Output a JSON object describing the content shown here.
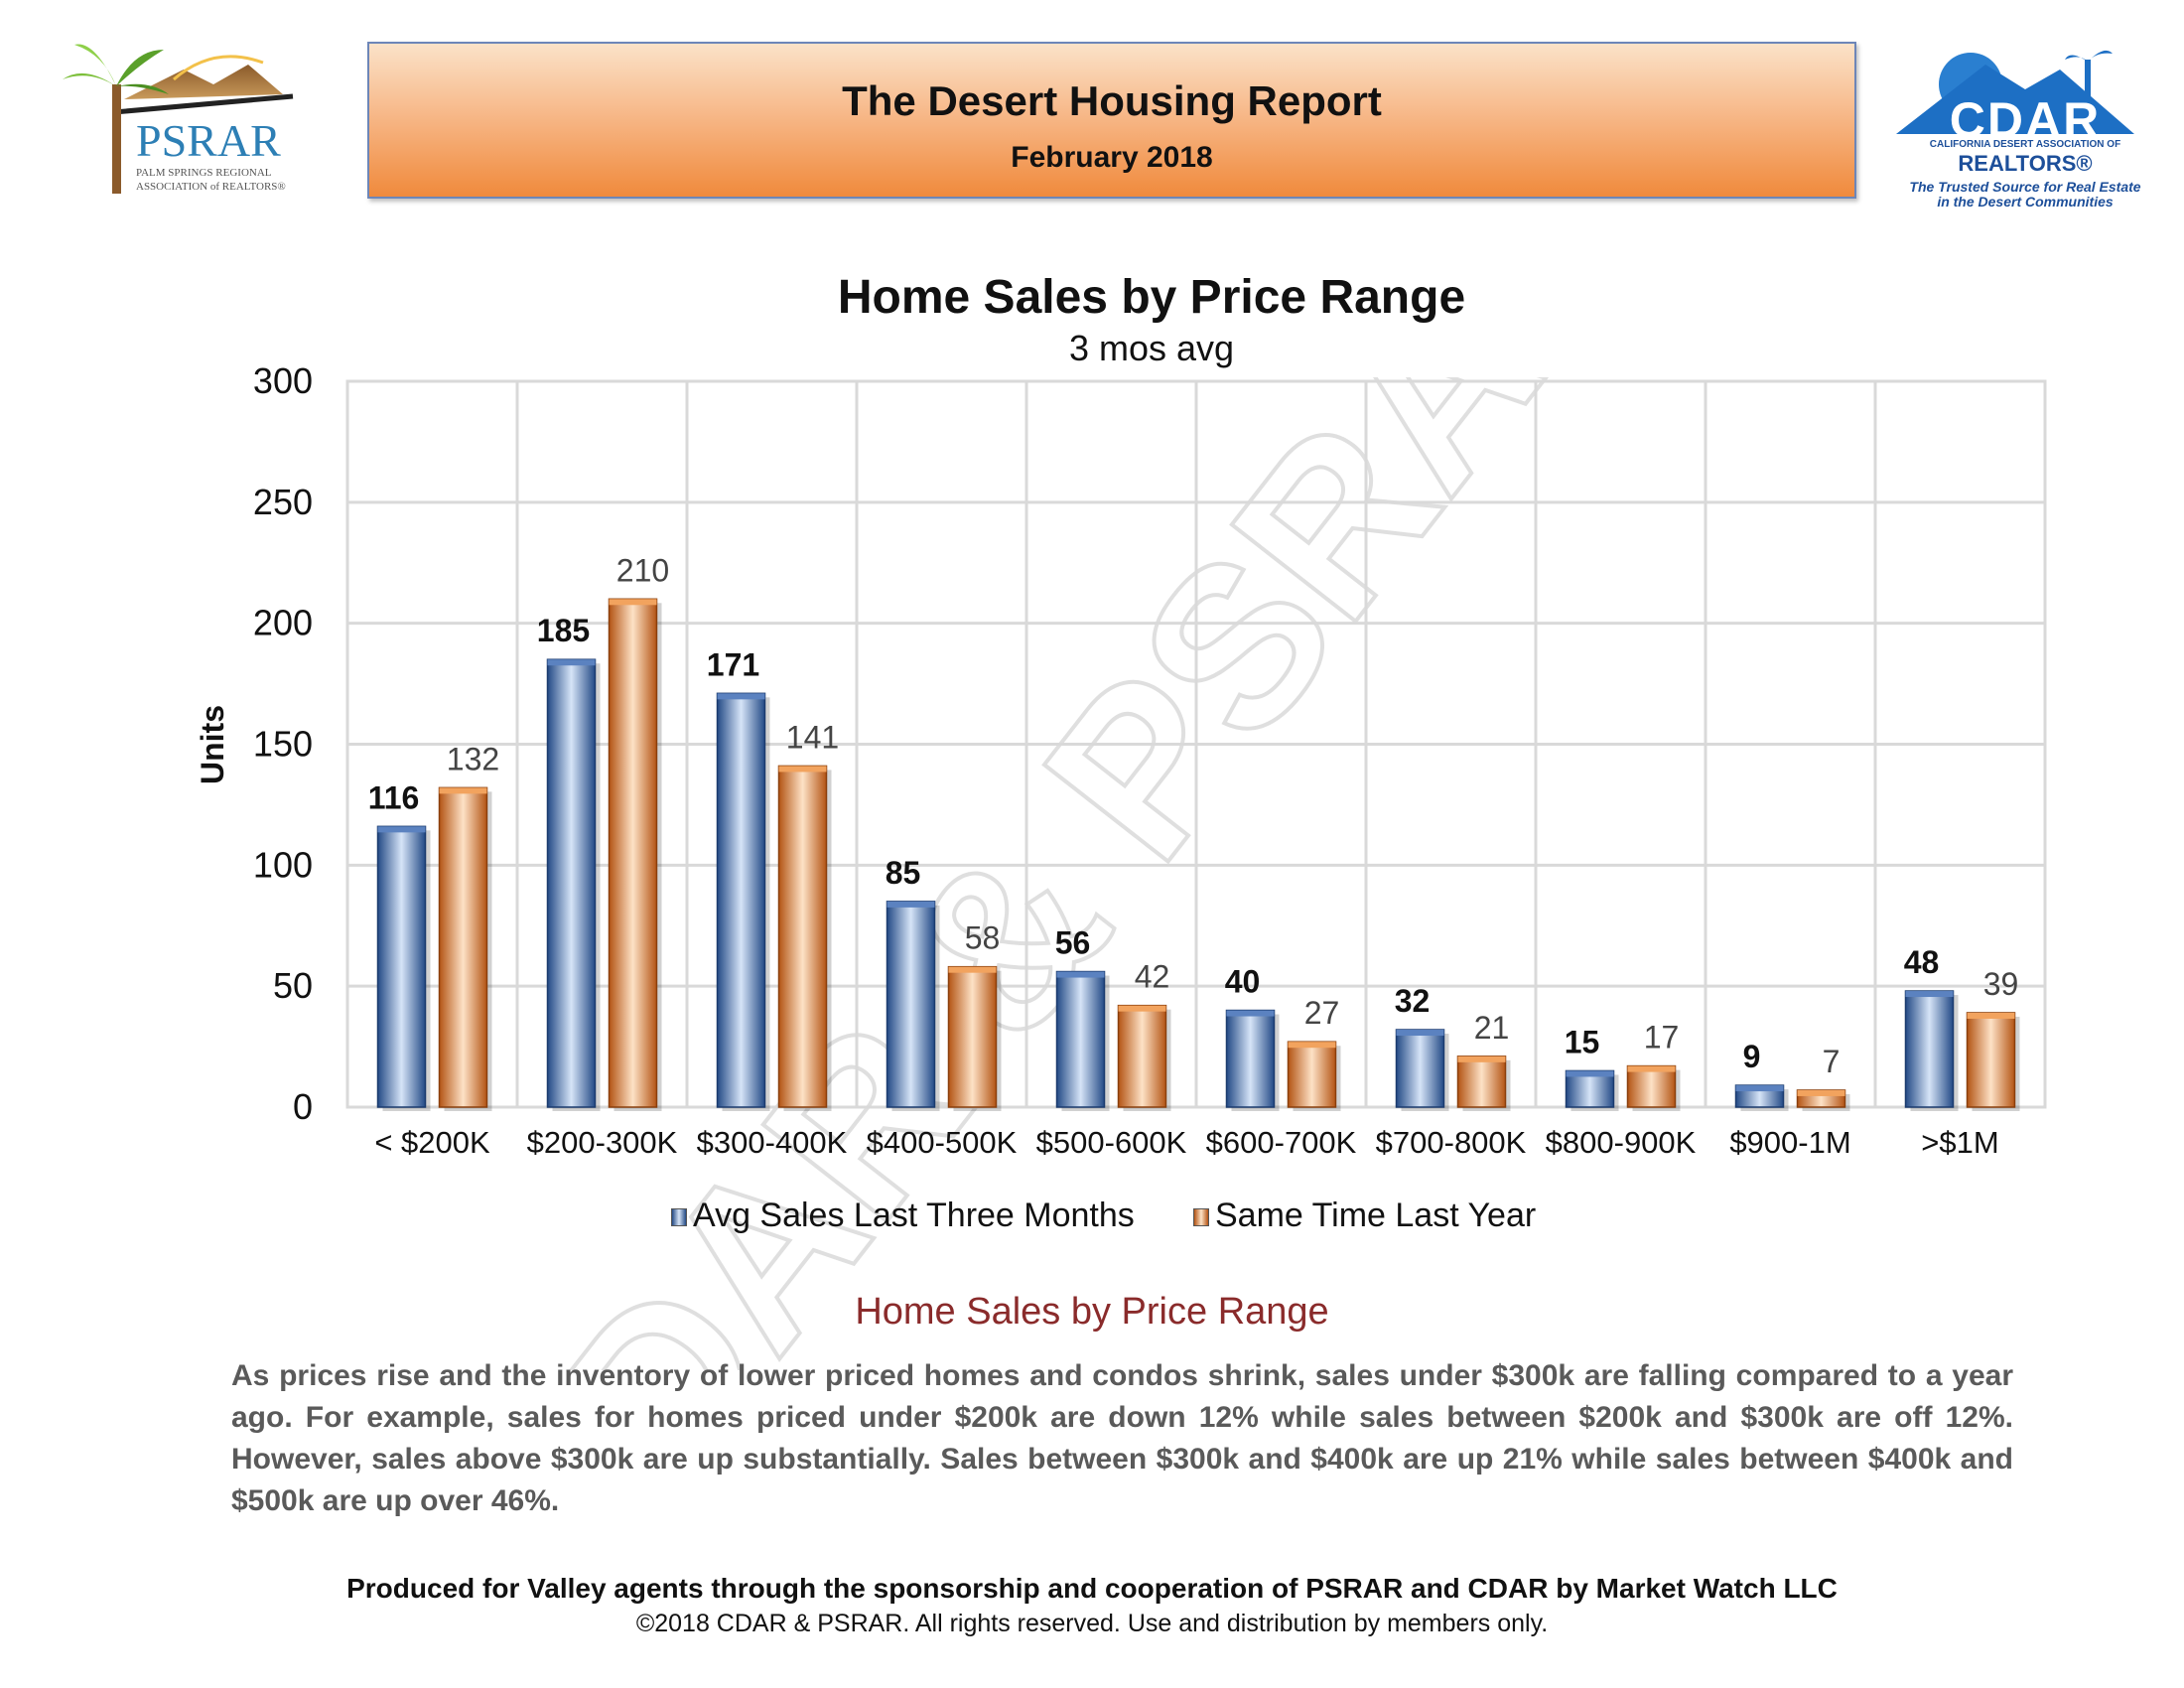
{
  "header": {
    "title": "The Desert Housing Report",
    "date": "February 2018",
    "left_logo": {
      "name": "PSRAR",
      "line1": "PALM SPRINGS REGIONAL",
      "line2": "ASSOCIATION of REALTORS®"
    },
    "right_logo": {
      "name": "CDAR",
      "line1": "CALIFORNIA DESERT ASSOCIATION OF",
      "line2": "REALTORS®",
      "tagline1": "The Trusted Source for Real Estate",
      "tagline2": "in the Desert Communities"
    }
  },
  "watermark": "CDAR & PSRAR",
  "chart_data": {
    "type": "bar",
    "title": "Home Sales by Price Range",
    "subtitle": "3 mos avg",
    "ylabel": "Units",
    "xlabel": "",
    "ylim": [
      0,
      300
    ],
    "yticks": [
      0,
      50,
      100,
      150,
      200,
      250,
      300
    ],
    "categories": [
      "< $200K",
      "$200-300K",
      "$300-400K",
      "$400-500K",
      "$500-600K",
      "$600-700K",
      "$700-800K",
      "$800-900K",
      "$900-1M",
      ">$1M"
    ],
    "series": [
      {
        "name": "Avg Sales Last Three Months",
        "color": "#3b67a8",
        "values": [
          116,
          185,
          171,
          85,
          56,
          40,
          32,
          15,
          9,
          48
        ]
      },
      {
        "name": "Same Time Last Year",
        "color": "#e07a22",
        "values": [
          132,
          210,
          141,
          58,
          42,
          27,
          21,
          17,
          7,
          39
        ]
      }
    ],
    "grid": true,
    "legend_position": "bottom"
  },
  "commentary": {
    "title": "Home Sales by Price Range",
    "text": "As prices rise and the inventory of lower priced homes and condos shrink, sales under $300k are falling compared to a year ago. For example, sales for homes priced under $200k are down 12% while sales between $200k and $300k are off 12%. However, sales above $300k are up substantially. Sales between $300k and $400k are up 21% while sales between $400k and $500k are up over 46%."
  },
  "footer": {
    "line1": "Produced for Valley agents through the sponsorship and cooperation of PSRAR and CDAR by Market Watch LLC",
    "line2": "©2018 CDAR & PSRAR.  All rights reserved.  Use and distribution by members only."
  }
}
